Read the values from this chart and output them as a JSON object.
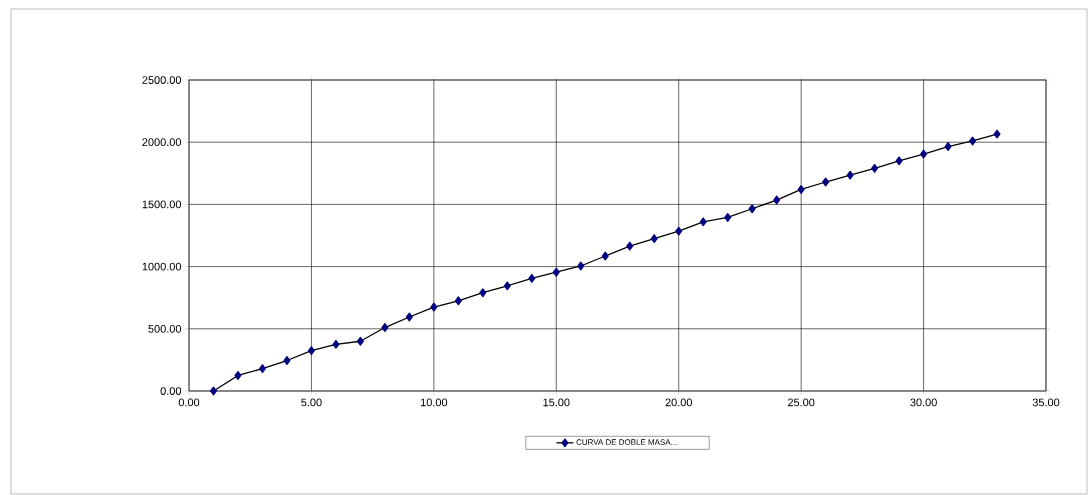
{
  "chart_data": {
    "type": "line",
    "x": [
      1,
      2,
      3,
      4,
      5,
      6,
      7,
      8,
      9,
      10,
      11,
      12,
      13,
      14,
      15,
      16,
      17,
      18,
      19,
      20,
      21,
      22,
      23,
      24,
      25,
      26,
      27,
      28,
      29,
      30,
      31,
      32,
      33
    ],
    "series": [
      {
        "name": "CURVA DE DOBLE MASA...",
        "color": "#000080",
        "values": [
          0,
          125,
          180,
          245,
          325,
          375,
          400,
          510,
          595,
          675,
          725,
          790,
          845,
          905,
          955,
          1005,
          1085,
          1165,
          1225,
          1285,
          1360,
          1395,
          1465,
          1535,
          1620,
          1680,
          1735,
          1790,
          1850,
          1905,
          1965,
          2010,
          2065
        ]
      }
    ],
    "xlim": [
      0,
      35
    ],
    "xticks": [
      {
        "value": 0,
        "label": "0.00"
      },
      {
        "value": 5,
        "label": "5.00"
      },
      {
        "value": 10,
        "label": "10.00"
      },
      {
        "value": 15,
        "label": "15.00"
      },
      {
        "value": 20,
        "label": "20.00"
      },
      {
        "value": 25,
        "label": "25.00"
      },
      {
        "value": 30,
        "label": "30.00"
      },
      {
        "value": 35,
        "label": "35.00"
      }
    ],
    "ylim": [
      0,
      2500
    ],
    "yticks": [
      {
        "value": 0,
        "label": "0.00"
      },
      {
        "value": 500,
        "label": "500.00"
      },
      {
        "value": 1000,
        "label": "1000.00"
      },
      {
        "value": 1500,
        "label": "1500.00"
      },
      {
        "value": 2000,
        "label": "2000.00"
      },
      {
        "value": 2500,
        "label": "2500.00"
      }
    ],
    "grid": true,
    "legend": "bottom",
    "marker": "diamond",
    "line_style": "solid"
  }
}
